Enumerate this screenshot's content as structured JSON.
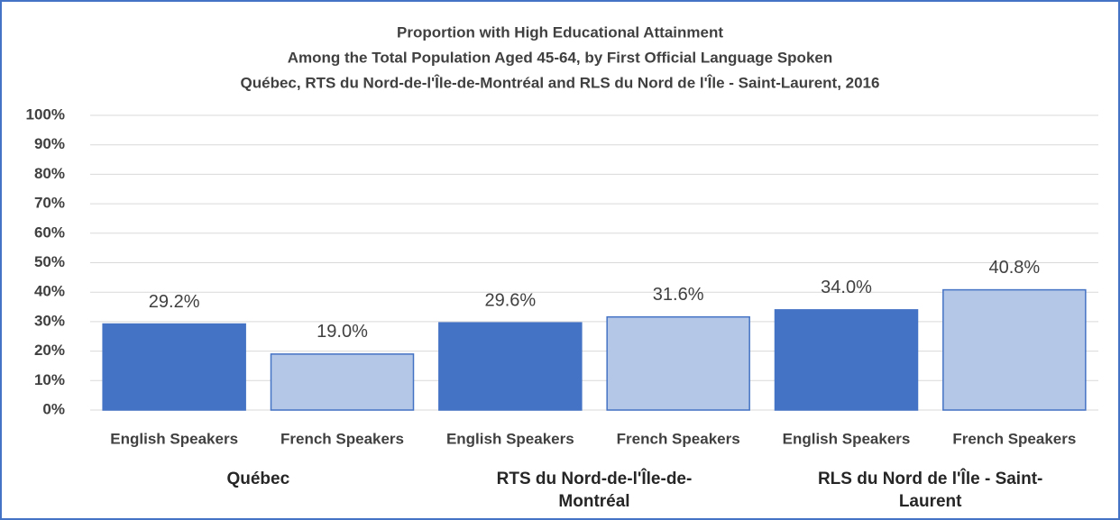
{
  "chart_data": {
    "type": "bar",
    "title": [
      "Proportion with High Educational Attainment",
      "Among the Total Population Aged 45-64, by First Official Language Spoken",
      "Québec, RTS du Nord-de-l'Île-de-Montréal and RLS du Nord de l'Île - Saint-Laurent, 2016"
    ],
    "categories": [
      "English Speakers",
      "French Speakers",
      "English Speakers",
      "French Speakers",
      "English Speakers",
      "French Speakers"
    ],
    "groups": [
      "Québec",
      "RTS du Nord-de-l'Île-de-Montréal",
      "RLS du Nord de l'Île - Saint-Laurent"
    ],
    "values": [
      29.2,
      19.0,
      29.6,
      31.6,
      34.0,
      40.8
    ],
    "value_labels": [
      "29.2%",
      "19.0%",
      "29.6%",
      "31.6%",
      "34.0%",
      "40.8%"
    ],
    "colors": [
      "#4472c4",
      "#b4c7e7",
      "#4472c4",
      "#b4c7e7",
      "#4472c4",
      "#b4c7e7"
    ],
    "ylim": [
      0,
      100
    ],
    "yticks": [
      {
        "value": 0,
        "label": "0%"
      },
      {
        "value": 10,
        "label": "10%"
      },
      {
        "value": 20,
        "label": "20%"
      },
      {
        "value": 30,
        "label": "30%"
      },
      {
        "value": 40,
        "label": "40%"
      },
      {
        "value": 50,
        "label": "50%"
      },
      {
        "value": 60,
        "label": "60%"
      },
      {
        "value": 70,
        "label": "70%"
      },
      {
        "value": 80,
        "label": "80%"
      },
      {
        "value": 90,
        "label": "90%"
      },
      {
        "value": 100,
        "label": "100%"
      }
    ],
    "grid": true
  }
}
